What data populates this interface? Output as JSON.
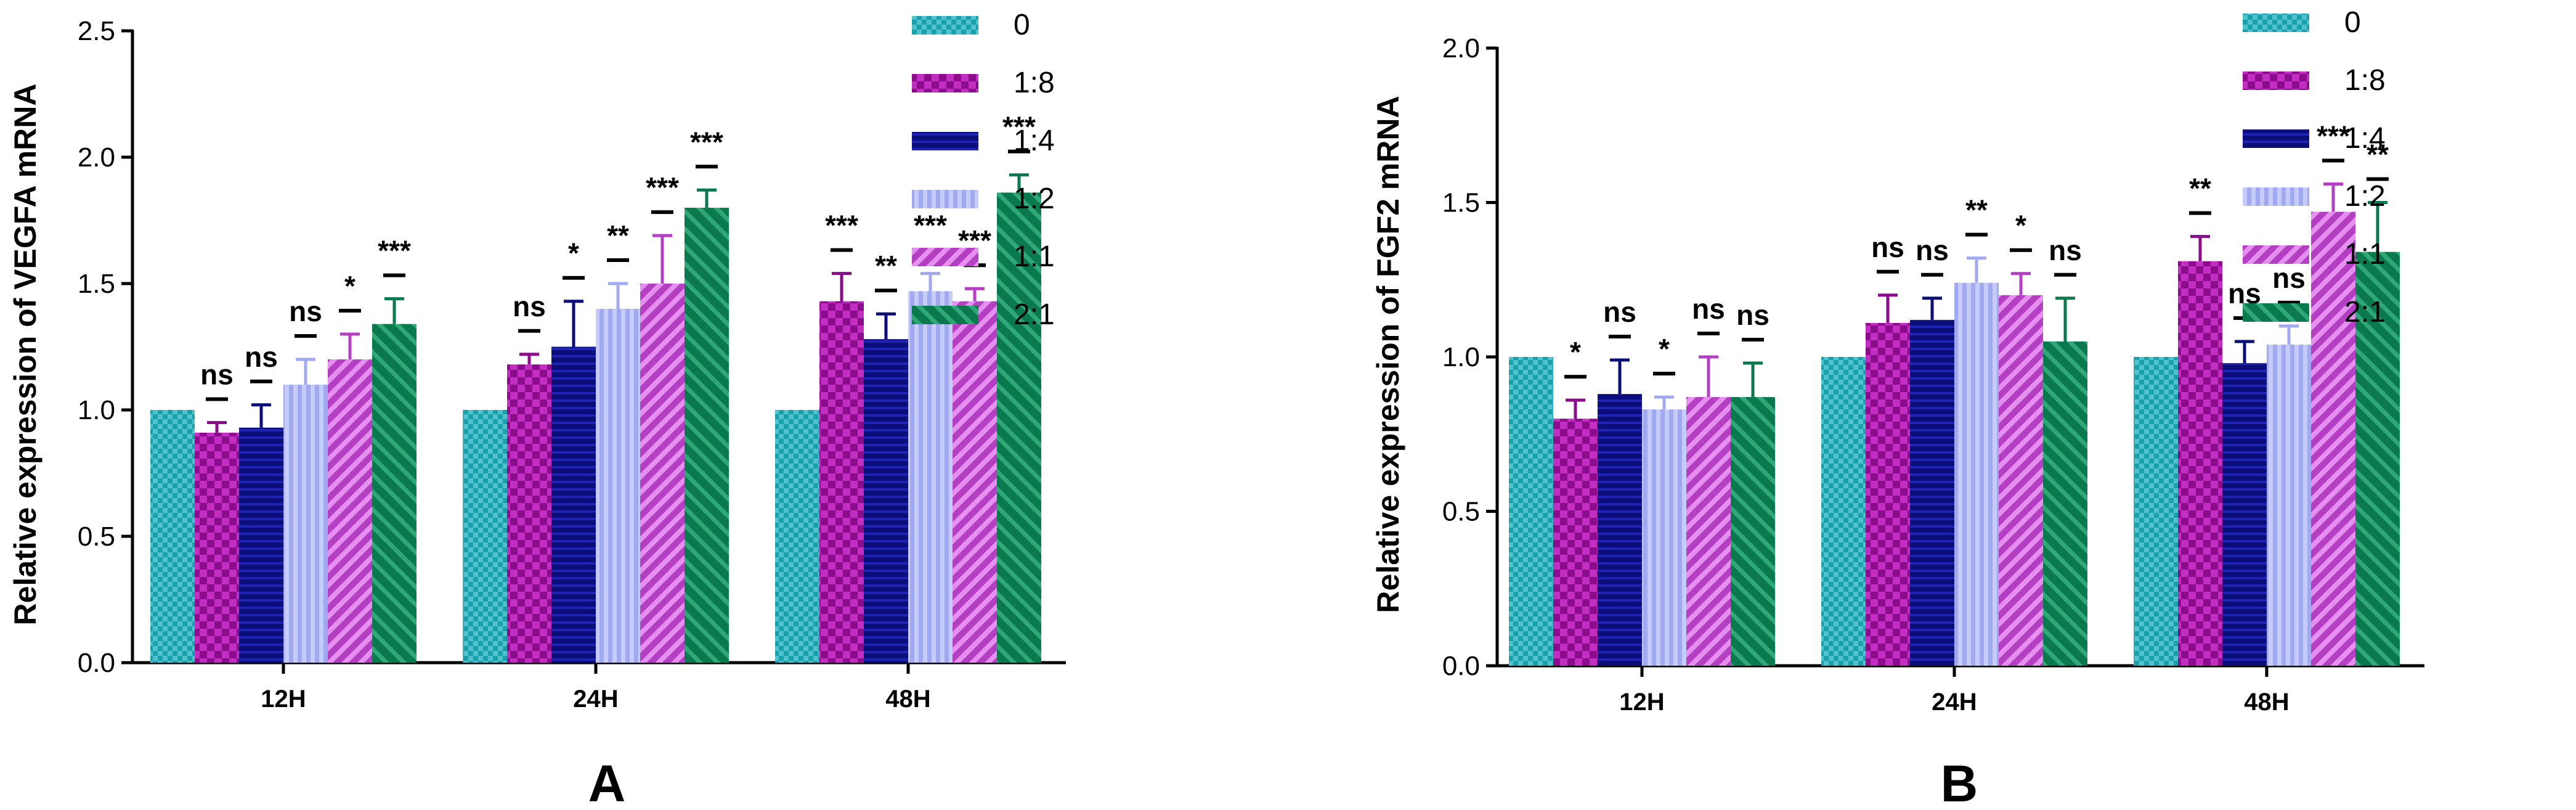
{
  "chart_data": [
    {
      "type": "bar",
      "panel_label": "A",
      "ylabel": "Relative expression of VEGFA mRNA",
      "ylim": [
        0,
        2.5
      ],
      "yticks": [
        "0.0",
        "0.5",
        "1.0",
        "1.5",
        "2.0",
        "2.5"
      ],
      "categories": [
        "12H",
        "24H",
        "48H"
      ],
      "legend": {
        "position": "right",
        "entries": [
          "0",
          "1:8",
          "1:4",
          "1:2",
          "1:1",
          "2:1"
        ]
      },
      "series": [
        {
          "name": "0",
          "values": [
            1.0,
            1.0,
            1.0
          ],
          "errors": [
            0,
            0,
            0
          ],
          "sig": [
            "",
            "",
            ""
          ]
        },
        {
          "name": "1:8",
          "values": [
            0.91,
            1.18,
            1.43
          ],
          "errors": [
            0.04,
            0.04,
            0.11
          ],
          "sig": [
            "ns",
            "ns",
            "***"
          ]
        },
        {
          "name": "1:4",
          "values": [
            0.93,
            1.25,
            1.28
          ],
          "errors": [
            0.09,
            0.18,
            0.1
          ],
          "sig": [
            "ns",
            "*",
            "**"
          ]
        },
        {
          "name": "1:2",
          "values": [
            1.1,
            1.4,
            1.47
          ],
          "errors": [
            0.1,
            0.1,
            0.07
          ],
          "sig": [
            "ns",
            "**",
            "***"
          ]
        },
        {
          "name": "1:1",
          "values": [
            1.2,
            1.5,
            1.43
          ],
          "errors": [
            0.1,
            0.19,
            0.05
          ],
          "sig": [
            "*",
            "***",
            "***"
          ]
        },
        {
          "name": "2:1",
          "values": [
            1.34,
            1.8,
            1.86
          ],
          "errors": [
            0.1,
            0.07,
            0.07
          ],
          "sig": [
            "***",
            "***",
            "***"
          ]
        }
      ]
    },
    {
      "type": "bar",
      "panel_label": "B",
      "ylabel": "Relative expression of FGF2 mRNA",
      "ylim": [
        0,
        2.0
      ],
      "yticks": [
        "0.0",
        "0.5",
        "1.0",
        "1.5",
        "2.0"
      ],
      "categories": [
        "12H",
        "24H",
        "48H"
      ],
      "legend": {
        "position": "right",
        "entries": [
          "0",
          "1:8",
          "1:4",
          "1:2",
          "1:1",
          "2:1"
        ]
      },
      "series": [
        {
          "name": "0",
          "values": [
            1.0,
            1.0,
            1.0
          ],
          "errors": [
            0,
            0,
            0
          ],
          "sig": [
            "",
            "",
            ""
          ]
        },
        {
          "name": "1:8",
          "values": [
            0.8,
            1.11,
            1.31
          ],
          "errors": [
            0.06,
            0.09,
            0.08
          ],
          "sig": [
            "*",
            "ns",
            "**"
          ]
        },
        {
          "name": "1:4",
          "values": [
            0.88,
            1.12,
            0.98
          ],
          "errors": [
            0.11,
            0.07,
            0.07
          ],
          "sig": [
            "ns",
            "ns",
            "ns"
          ]
        },
        {
          "name": "1:2",
          "values": [
            0.83,
            1.24,
            1.04
          ],
          "errors": [
            0.04,
            0.08,
            0.06
          ],
          "sig": [
            "*",
            "**",
            "ns"
          ]
        },
        {
          "name": "1:1",
          "values": [
            0.87,
            1.2,
            1.47
          ],
          "errors": [
            0.13,
            0.07,
            0.09
          ],
          "sig": [
            "ns",
            "*",
            "***"
          ]
        },
        {
          "name": "2:1",
          "values": [
            0.87,
            1.05,
            1.34
          ],
          "errors": [
            0.11,
            0.14,
            0.16
          ],
          "sig": [
            "ns",
            "ns",
            "**"
          ]
        }
      ]
    }
  ],
  "colors": [
    "#1a9fac",
    "#8c0d8c",
    "#0b0d78",
    "#a1a9f2",
    "#b53fc2",
    "#0a7a4e"
  ]
}
